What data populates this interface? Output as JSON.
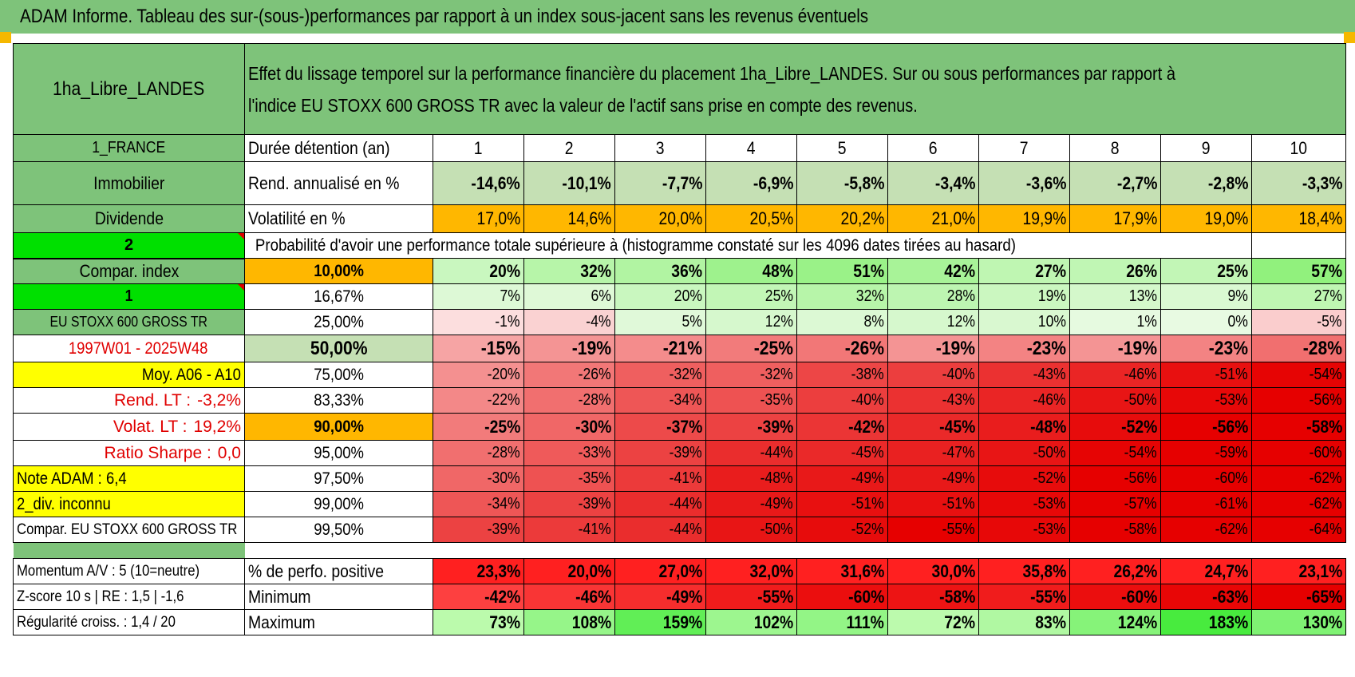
{
  "title": "ADAM Informe. Tableau des sur-(sous-)performances par rapport à un index sous-jacent sans les revenus éventuels",
  "header": {
    "asset_name": "1ha_Libre_LANDES",
    "description": "Effet du lissage temporel sur la performance financière du placement 1ha_Libre_LANDES. Sur ou sous performances par rapport à l'indice EU STOXX 600 GROSS TR avec la valeur de l'actif sans prise en compte des revenus.",
    "description_line1": "Effet du lissage temporel sur la performance financière du placement 1ha_Libre_LANDES. Sur ou sous performances par rapport à",
    "description_line2": "l'indice EU STOXX 600 GROSS TR avec la valeur de l'actif sans prise en compte des revenus."
  },
  "left_labels": {
    "country": "1_FRANCE",
    "category": "Immobilier",
    "type": "Dividende",
    "selector_2": "2",
    "compar_index": "Compar. index",
    "selector_1": "1",
    "index_name": "EU STOXX 600 GROSS TR",
    "period": "1997W01 - 2025W48",
    "moy": "Moy. A06 - A10",
    "rend_lt_label": "Rend. LT :",
    "rend_lt_value": "-3,2%",
    "volat_lt_label": "Volat. LT :",
    "volat_lt_value": "19,2%",
    "sharpe_label": "Ratio Sharpe :",
    "sharpe_value": "0,0",
    "note_adam": "Note ADAM : 6,4",
    "div": "2_div. inconnu",
    "compar_eu": "Compar. EU STOXX 600 GROSS TR"
  },
  "holding": {
    "label": "Durée détention (an)",
    "years": [
      "1",
      "2",
      "3",
      "4",
      "5",
      "6",
      "7",
      "8",
      "9",
      "10"
    ]
  },
  "rend": {
    "label": "Rend. annualisé en %",
    "values": [
      "-14,6%",
      "-10,1%",
      "-7,7%",
      "-6,9%",
      "-5,8%",
      "-3,4%",
      "-3,6%",
      "-2,7%",
      "-2,8%",
      "-3,3%"
    ]
  },
  "vol": {
    "label": "Volatilité en %",
    "values": [
      "17,0%",
      "14,6%",
      "20,0%",
      "20,5%",
      "20,2%",
      "21,0%",
      "19,9%",
      "17,9%",
      "19,0%",
      "18,4%"
    ]
  },
  "prob_header": "Probabilité d'avoir une performance totale supérieure à (histogramme constaté sur les 4096 dates tirées au hasard)",
  "prob_rows": [
    {
      "pct": "10,00%",
      "values": [
        "20%",
        "32%",
        "36%",
        "48%",
        "51%",
        "42%",
        "27%",
        "26%",
        "25%",
        "57%"
      ]
    },
    {
      "pct": "16,67%",
      "values": [
        "7%",
        "6%",
        "20%",
        "25%",
        "32%",
        "28%",
        "19%",
        "13%",
        "9%",
        "27%"
      ]
    },
    {
      "pct": "25,00%",
      "values": [
        "-1%",
        "-4%",
        "5%",
        "12%",
        "8%",
        "12%",
        "10%",
        "1%",
        "0%",
        "-5%"
      ]
    },
    {
      "pct": "50,00%",
      "values": [
        "-15%",
        "-19%",
        "-21%",
        "-25%",
        "-26%",
        "-19%",
        "-23%",
        "-19%",
        "-23%",
        "-28%"
      ]
    },
    {
      "pct": "75,00%",
      "values": [
        "-20%",
        "-26%",
        "-32%",
        "-32%",
        "-38%",
        "-40%",
        "-43%",
        "-46%",
        "-51%",
        "-54%"
      ]
    },
    {
      "pct": "83,33%",
      "values": [
        "-22%",
        "-28%",
        "-34%",
        "-35%",
        "-40%",
        "-43%",
        "-46%",
        "-50%",
        "-53%",
        "-56%"
      ]
    },
    {
      "pct": "90,00%",
      "values": [
        "-25%",
        "-30%",
        "-37%",
        "-39%",
        "-42%",
        "-45%",
        "-48%",
        "-52%",
        "-56%",
        "-58%"
      ]
    },
    {
      "pct": "95,00%",
      "values": [
        "-28%",
        "-33%",
        "-39%",
        "-44%",
        "-45%",
        "-47%",
        "-50%",
        "-54%",
        "-59%",
        "-60%"
      ]
    },
    {
      "pct": "97,50%",
      "values": [
        "-30%",
        "-35%",
        "-41%",
        "-48%",
        "-49%",
        "-49%",
        "-52%",
        "-56%",
        "-60%",
        "-62%"
      ]
    },
    {
      "pct": "99,00%",
      "values": [
        "-34%",
        "-39%",
        "-44%",
        "-49%",
        "-51%",
        "-51%",
        "-53%",
        "-57%",
        "-61%",
        "-62%"
      ]
    },
    {
      "pct": "99,50%",
      "values": [
        "-39%",
        "-41%",
        "-44%",
        "-50%",
        "-52%",
        "-55%",
        "-53%",
        "-58%",
        "-62%",
        "-64%"
      ]
    }
  ],
  "bottom": {
    "momentum": "Momentum A/V : 5 (10=neutre)",
    "zscore": "Z-score 10 s | RE : 1,5 | -1,6",
    "regularite": "Régularité croiss. : 1,4 / 20",
    "positive_label": "% de perfo. positive",
    "positive": [
      "23,3%",
      "20,0%",
      "27,0%",
      "32,0%",
      "31,6%",
      "30,0%",
      "35,8%",
      "26,2%",
      "24,7%",
      "23,1%"
    ],
    "min_label": "Minimum",
    "min": [
      "-42%",
      "-46%",
      "-49%",
      "-55%",
      "-60%",
      "-58%",
      "-55%",
      "-60%",
      "-63%",
      "-65%"
    ],
    "max_label": "Maximum",
    "max": [
      "73%",
      "108%",
      "159%",
      "102%",
      "111%",
      "72%",
      "83%",
      "124%",
      "183%",
      "130%"
    ]
  },
  "colors": {
    "header_green": "#7ec37a",
    "light_green": "#c5e0b4",
    "orange": "#ffb700",
    "yellow": "#ffff00",
    "bright_green": "#00e000",
    "red_text": "#e00000"
  }
}
